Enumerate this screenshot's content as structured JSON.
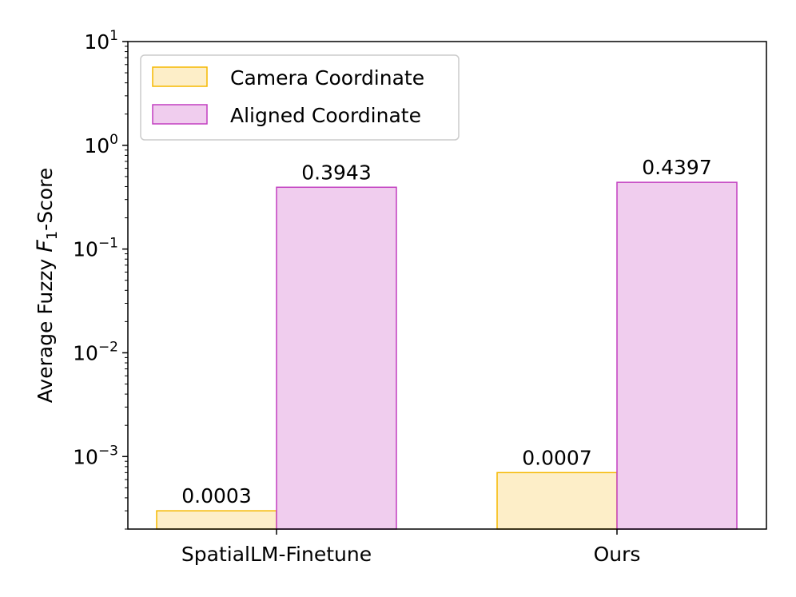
{
  "chart_data": {
    "type": "bar",
    "categories": [
      "SpatialLM-Finetune",
      "Ours"
    ],
    "series": [
      {
        "name": "Camera Coordinate",
        "values": [
          0.0003,
          0.0007
        ],
        "value_labels": [
          "0.0003",
          "0.0007"
        ],
        "fill": "#fdeec8",
        "edge": "#f5b800"
      },
      {
        "name": "Aligned Coordinate",
        "values": [
          0.3943,
          0.4397
        ],
        "value_labels": [
          "0.3943",
          "0.4397"
        ],
        "fill": "#f0cdee",
        "edge": "#c23fc0"
      }
    ],
    "ylabel": {
      "pre": "Average Fuzzy ",
      "var": "F",
      "sub": "1",
      "post": "-Score"
    },
    "yscale": "log",
    "ylim": [
      0.0002,
      10
    ],
    "yticks": [
      {
        "value": 10,
        "base": "10",
        "exp": "1"
      },
      {
        "value": 1,
        "base": "10",
        "exp": "0"
      },
      {
        "value": 0.1,
        "base": "10",
        "exp": "−1"
      },
      {
        "value": 0.01,
        "base": "10",
        "exp": "−2"
      },
      {
        "value": 0.001,
        "base": "10",
        "exp": "−3"
      }
    ],
    "grid": false,
    "legend_position": "top-left"
  }
}
